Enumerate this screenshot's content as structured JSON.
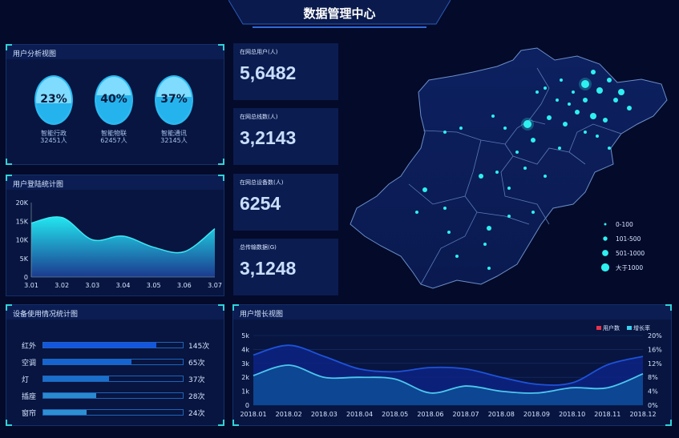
{
  "header": {
    "title": "数据管理中心"
  },
  "user_analysis": {
    "title": "用户分析视图",
    "items": [
      {
        "percent": "23%",
        "fraction": 0.23,
        "name": "智能行政",
        "count": "32451人"
      },
      {
        "percent": "40%",
        "fraction": 0.4,
        "name": "智能物联",
        "count": "62457人"
      },
      {
        "percent": "37%",
        "fraction": 0.37,
        "name": "智能通讯",
        "count": "32145人"
      }
    ]
  },
  "login_chart": {
    "title": "用户登陆统计图"
  },
  "stats": [
    {
      "label": "在网总用户(人)",
      "value": "5,6482"
    },
    {
      "label": "在网总线数(人)",
      "value": "3,2143"
    },
    {
      "label": "在网总设备数(人)",
      "value": "6254"
    },
    {
      "label": "总传输数据(G)",
      "value": "3,1248"
    }
  ],
  "device_usage": {
    "title": "设备使用情况统计图",
    "items": [
      {
        "name": "红外",
        "value": "145次",
        "fill": 0.81,
        "color": "#1456e0"
      },
      {
        "name": "空调",
        "value": "65次",
        "fill": 0.63,
        "color": "#1565d0"
      },
      {
        "name": "灯",
        "value": "37次",
        "fill": 0.47,
        "color": "#1a6fcc"
      },
      {
        "name": "插座",
        "value": "28次",
        "fill": 0.38,
        "color": "#2a8ad0"
      },
      {
        "name": "窗帘",
        "value": "24次",
        "fill": 0.31,
        "color": "#2e90d2"
      }
    ]
  },
  "growth_chart": {
    "title": "用户增长视图"
  },
  "map": {
    "legend": [
      {
        "label": "0-100"
      },
      {
        "label": "101-500"
      },
      {
        "label": "501-1000"
      },
      {
        "label": "大于1000"
      }
    ],
    "dot_color": "#2ef0f0"
  },
  "chart_data": [
    {
      "type": "area",
      "x": [
        "3.01",
        "3.02",
        "3.03",
        "3.04",
        "3.05",
        "3.06",
        "3.07"
      ],
      "values": [
        14500,
        16000,
        10000,
        11000,
        8000,
        6800,
        13000
      ],
      "yticks": [
        "0",
        "5K",
        "10K",
        "15K",
        "20K"
      ],
      "ylim": [
        0,
        20000
      ],
      "grid": false
    },
    {
      "type": "area",
      "x": [
        "2018.01",
        "2018.02",
        "2018.03",
        "2018.04",
        "2018.05",
        "2018.06",
        "2018.07",
        "2018.08",
        "2018.09",
        "2018.10",
        "2018.11",
        "2018.12"
      ],
      "series": [
        {
          "name": "用户数",
          "axis": "left",
          "color": "#e8334a",
          "values": [
            3600,
            4300,
            3500,
            2600,
            2400,
            2700,
            2600,
            2000,
            1500,
            1600,
            2900,
            3500
          ]
        },
        {
          "name": "增长率",
          "axis": "right",
          "color": "#3ad0f0",
          "values": [
            8.5,
            11.5,
            8,
            8,
            7.5,
            3.5,
            5.5,
            4,
            3.5,
            5,
            5,
            9
          ]
        }
      ],
      "yticks_left": [
        "0",
        "1k",
        "2k",
        "3k",
        "4k",
        "5k"
      ],
      "ylim_left": [
        0,
        5000
      ],
      "yticks_right": [
        "0%",
        "4%",
        "8%",
        "12%",
        "16%",
        "20%"
      ],
      "ylim_right": [
        0,
        20
      ],
      "legend": "top-right",
      "grid": true
    }
  ]
}
